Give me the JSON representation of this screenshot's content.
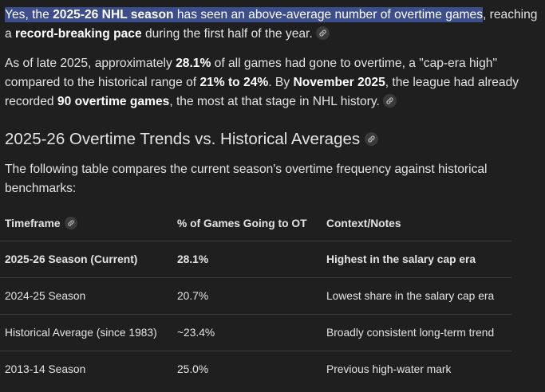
{
  "intro": {
    "highlight_a": "Yes, the ",
    "highlight_b": "2025-26 NHL season",
    "highlight_c": " has seen an above-average number of overtime games",
    "rest_a": ", reaching a ",
    "bold_a": "record-breaking pace",
    "rest_b": " during the first half of the year."
  },
  "para2": {
    "t1": "As of late 2025, approximately ",
    "b1": "28.1%",
    "t2": " of all games had gone to overtime, a \"cap-era high\" compared to the historical range of ",
    "b2": "21% to 24%",
    "t3": ". By ",
    "b3": "November 2025",
    "t4": ", the league had already recorded ",
    "b4": "90 overtime games",
    "t5": ", the most at that stage in NHL history."
  },
  "heading": "2025-26 Overtime Trends vs. Historical Averages",
  "para3": "The following table compares the current season's overtime frequency against historical benchmarks:",
  "table": {
    "headers": [
      "Timeframe",
      "% of Games Going to OT",
      "Context/Notes"
    ],
    "rows": [
      [
        "2025-26 Season (Current)",
        "28.1%",
        "Highest in the salary cap era"
      ],
      [
        "2024-25 Season",
        "20.7%",
        "Lowest share in the salary cap era"
      ],
      [
        "Historical Average (since 1983)",
        "~23.4%",
        "Broadly consistent long-term trend"
      ],
      [
        "2013-14 Season",
        "25.0%",
        "Previous high-water mark"
      ]
    ]
  },
  "colors": {
    "background": "#1f1f1f",
    "text": "#e3e3e3",
    "highlight": "#3d4e8c",
    "divider": "#3c3c3c",
    "link_chip": "#3a3a3a"
  },
  "icons": {
    "citation": "link-icon"
  }
}
